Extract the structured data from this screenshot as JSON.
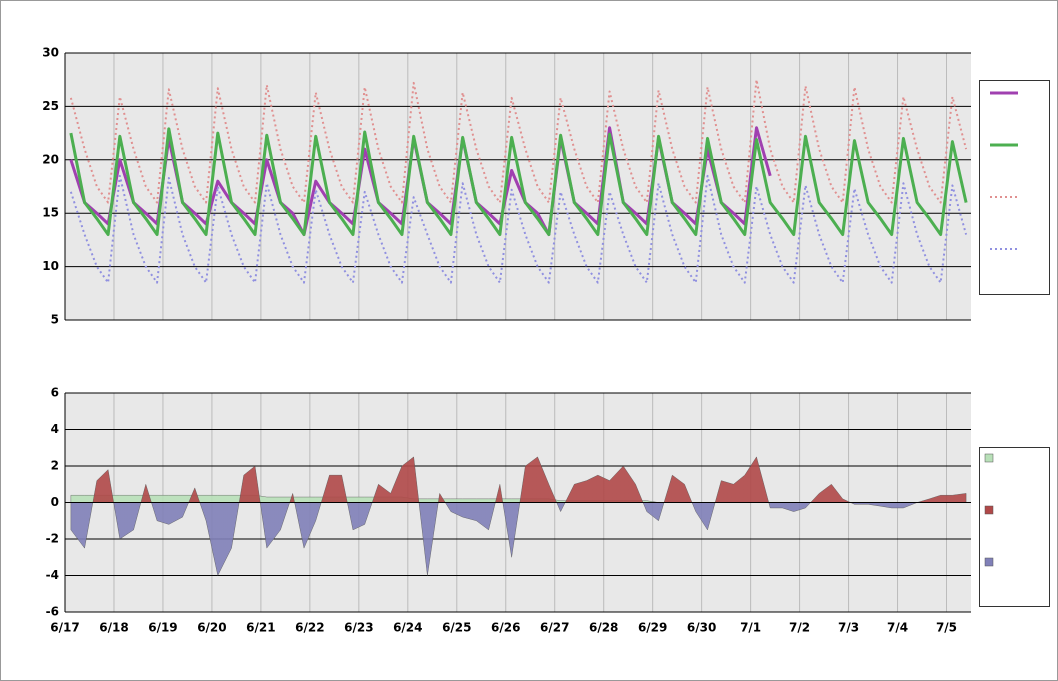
{
  "chart_data": [
    {
      "type": "line",
      "x": [
        0.12,
        0.4,
        0.65,
        0.88,
        1.12,
        1.4,
        1.65,
        1.88,
        2.12,
        2.4,
        2.65,
        2.88,
        3.12,
        3.4,
        3.65,
        3.88,
        4.12,
        4.4,
        4.65,
        4.88,
        5.12,
        5.4,
        5.65,
        5.88,
        6.12,
        6.4,
        6.65,
        6.88,
        7.12,
        7.4,
        7.65,
        7.88,
        8.12,
        8.4,
        8.65,
        8.88,
        9.12,
        9.4,
        9.65,
        9.88,
        10.12,
        10.4,
        10.65,
        10.88,
        11.12,
        11.4,
        11.65,
        11.88,
        12.12,
        12.4,
        12.65,
        12.88,
        13.12,
        13.4,
        13.65,
        13.88,
        14.12,
        14.4,
        14.65,
        14.88,
        15.12,
        15.4,
        15.65,
        15.88,
        16.12,
        16.4,
        16.65,
        16.88,
        17.12,
        17.4,
        17.65,
        17.88,
        18.12,
        18.4
      ],
      "series": [
        {
          "color": "#a040b0",
          "width": 3,
          "dotted": false,
          "values": [
            20,
            16,
            15,
            14,
            20,
            16,
            15,
            14,
            22,
            16,
            15,
            14,
            18,
            16,
            15,
            14,
            20,
            16,
            15,
            13,
            18,
            16,
            15,
            14,
            21,
            16,
            15,
            14,
            22,
            16,
            15,
            14,
            22,
            16,
            15,
            14,
            19,
            16,
            15,
            13,
            22,
            16,
            15,
            14,
            23,
            16,
            15,
            14,
            22,
            16,
            15,
            14,
            21,
            16,
            15,
            14,
            23,
            18.5,
            null,
            null,
            null,
            null,
            null,
            null,
            null,
            null,
            null,
            null,
            null,
            null,
            null,
            null,
            null,
            null
          ]
        },
        {
          "color": "#4caf50",
          "width": 3,
          "dotted": false,
          "values": [
            22.5,
            16,
            14.5,
            13,
            22.2,
            16,
            14.5,
            13,
            22.9,
            16,
            14.5,
            13,
            22.5,
            16,
            14.5,
            13,
            22.3,
            16,
            14.5,
            13,
            22.2,
            16,
            14.5,
            13,
            22.6,
            16,
            14.5,
            13,
            22.2,
            16,
            14.5,
            13,
            22.1,
            16,
            14.5,
            13,
            22.1,
            16,
            14.5,
            13,
            22.3,
            16,
            14.5,
            13,
            22.4,
            16,
            14.5,
            13,
            22.2,
            16,
            14.5,
            13,
            22.0,
            16,
            14.5,
            13,
            21.9,
            16,
            14.5,
            13,
            22.2,
            16,
            14.5,
            13,
            21.8,
            16,
            14.5,
            13,
            22.0,
            16,
            14.5,
            13,
            21.7,
            16
          ]
        },
        {
          "color": "#e09090",
          "width": 2,
          "dotted": true,
          "values": [
            25.8,
            21,
            17.5,
            16,
            25.9,
            21,
            17.5,
            16,
            26.6,
            21,
            17.5,
            16,
            26.7,
            21,
            17.5,
            16,
            27,
            21,
            17.5,
            16,
            26.3,
            21,
            17.5,
            16,
            26.8,
            21,
            17.5,
            16,
            27.2,
            21,
            17.5,
            16,
            26.3,
            21,
            17.5,
            16,
            25.8,
            21,
            17.5,
            16,
            25.8,
            21,
            17.5,
            16,
            26.4,
            21,
            17.5,
            16,
            26.5,
            21,
            17.5,
            16,
            26.8,
            21,
            17.5,
            16,
            27.5,
            21,
            17.5,
            16,
            26.9,
            21,
            17.5,
            16,
            26.8,
            21,
            17.5,
            16,
            25.9,
            21,
            17.5,
            16,
            25.9,
            21
          ]
        },
        {
          "color": "#9090e0",
          "width": 2,
          "dotted": true,
          "values": [
            17,
            13,
            10,
            8.5,
            18.5,
            13,
            10,
            8.5,
            18.3,
            13,
            10,
            8.5,
            17.5,
            13,
            10,
            8.5,
            17.8,
            13,
            10,
            8.5,
            17.2,
            13,
            10,
            8.5,
            17,
            13,
            10,
            8.5,
            16.5,
            13,
            10,
            8.5,
            17.8,
            13,
            10,
            8.5,
            17.2,
            13,
            10,
            8.5,
            17,
            13,
            10,
            8.5,
            17,
            13,
            10,
            8.5,
            17.8,
            13,
            10,
            8.5,
            18.5,
            13,
            10,
            8.5,
            17.5,
            13,
            10,
            8.5,
            17.6,
            13,
            10,
            8.5,
            17.3,
            13,
            10,
            8.5,
            17.8,
            13,
            10,
            8.5,
            17.6,
            13
          ]
        }
      ],
      "xlim": [
        0,
        18.5
      ],
      "xticks": [
        0,
        1,
        2,
        3,
        4,
        5,
        6,
        7,
        8,
        9,
        10,
        11,
        12,
        13,
        14,
        15,
        16,
        17,
        18
      ],
      "ylim": [
        5,
        30
      ],
      "yticks": [
        5,
        10,
        15,
        20,
        25,
        30
      ]
    },
    {
      "type": "area",
      "x": [
        0.12,
        0.4,
        0.65,
        0.88,
        1.12,
        1.4,
        1.65,
        1.88,
        2.12,
        2.4,
        2.65,
        2.88,
        3.12,
        3.4,
        3.65,
        3.88,
        4.12,
        4.4,
        4.65,
        4.88,
        5.12,
        5.4,
        5.65,
        5.88,
        6.12,
        6.4,
        6.65,
        6.88,
        7.12,
        7.4,
        7.65,
        7.88,
        8.12,
        8.4,
        8.65,
        8.88,
        9.12,
        9.4,
        9.65,
        9.88,
        10.12,
        10.4,
        10.65,
        10.88,
        11.12,
        11.4,
        11.65,
        11.88,
        12.12,
        12.4,
        12.65,
        12.88,
        13.12,
        13.4,
        13.65,
        13.88,
        14.12,
        14.4,
        14.65,
        14.88,
        15.12,
        15.4,
        15.65,
        15.88,
        16.12,
        16.4,
        16.65,
        16.88,
        17.12,
        17.4,
        17.65,
        17.88,
        18.12,
        18.4
      ],
      "series": [
        {
          "color": "#b8e0b8",
          "values": [
            0.4,
            0.4,
            0.4,
            0.4,
            0.4,
            0.4,
            0.4,
            0.4,
            0.4,
            0.4,
            0.4,
            0.4,
            0.4,
            0.4,
            0.4,
            0.4,
            0.3,
            0.3,
            0.3,
            0.3,
            0.3,
            0.3,
            0.3,
            0.3,
            0.3,
            0.3,
            0.3,
            0.3,
            0.2,
            0.2,
            0.2,
            0.2,
            0.2,
            0.2,
            0.2,
            0.2,
            0.2,
            0.2,
            0.2,
            0.2,
            0.1,
            0.1,
            0.1,
            0.1,
            0.1,
            0.1,
            0.1,
            0.1,
            0,
            0,
            0,
            0,
            0,
            0,
            0,
            0,
            0,
            0,
            null,
            null,
            null,
            null,
            null,
            null,
            null,
            null,
            null,
            null,
            null,
            null,
            null,
            null,
            null,
            null
          ]
        },
        {
          "color": "#b04848",
          "negative_color": "#8080b8",
          "values": [
            -1.5,
            -2.5,
            1.2,
            1.8,
            -2,
            -1.5,
            1,
            -1,
            -1.2,
            -0.8,
            0.8,
            -1,
            -4,
            -2.5,
            1.5,
            2,
            -2.5,
            -1.5,
            0.5,
            -2.5,
            -1,
            1.5,
            1.5,
            -1.5,
            -1.2,
            1,
            0.5,
            2,
            2.5,
            -4,
            0.5,
            -0.5,
            -0.8,
            -1,
            -1.5,
            1,
            -3,
            2,
            2.5,
            1,
            -0.5,
            1,
            1.2,
            1.5,
            1.2,
            2,
            1,
            -0.5,
            -1,
            1.5,
            1,
            -0.5,
            -1.5,
            1.2,
            1,
            1.5,
            2.5,
            -0.3,
            -0.3,
            -0.5,
            -0.3,
            0.5,
            1,
            0.2,
            -0.1,
            -0.1,
            -0.2,
            -0.3,
            -0.3,
            0,
            0.2,
            0.4,
            0.4,
            0.5
          ]
        }
      ],
      "xlim": [
        0,
        18.5
      ],
      "xticks": [
        {
          "value": 0,
          "label": "6/17"
        },
        {
          "value": 1,
          "label": "6/18"
        },
        {
          "value": 2,
          "label": "6/19"
        },
        {
          "value": 3,
          "label": "6/20"
        },
        {
          "value": 4,
          "label": "6/21"
        },
        {
          "value": 5,
          "label": "6/22"
        },
        {
          "value": 6,
          "label": "6/23"
        },
        {
          "value": 7,
          "label": "6/24"
        },
        {
          "value": 8,
          "label": "6/25"
        },
        {
          "value": 9,
          "label": "6/26"
        },
        {
          "value": 10,
          "label": "6/27"
        },
        {
          "value": 11,
          "label": "6/28"
        },
        {
          "value": 12,
          "label": "6/29"
        },
        {
          "value": 13,
          "label": "6/30"
        },
        {
          "value": 14,
          "label": "7/1"
        },
        {
          "value": 15,
          "label": "7/2"
        },
        {
          "value": 16,
          "label": "7/3"
        },
        {
          "value": 17,
          "label": "7/4"
        },
        {
          "value": 18,
          "label": "7/5"
        }
      ],
      "ylim": [
        -6,
        6
      ],
      "yticks": [
        -6,
        -4,
        -2,
        0,
        2,
        4,
        6
      ]
    }
  ]
}
